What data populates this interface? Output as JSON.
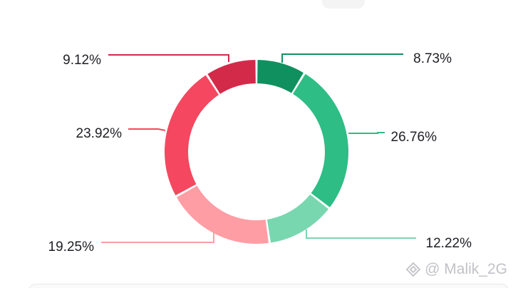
{
  "chart_data": {
    "type": "pie",
    "style": "donut",
    "slices": [
      {
        "label": "8.73%",
        "value": 8.73,
        "color": "#11905f"
      },
      {
        "label": "26.76%",
        "value": 26.76,
        "color": "#2dbd85"
      },
      {
        "label": "12.22%",
        "value": 12.22,
        "color": "#79d7b0"
      },
      {
        "label": "19.25%",
        "value": 19.25,
        "color": "#ff9da5"
      },
      {
        "label": "23.92%",
        "value": 23.92,
        "color": "#f5475f"
      },
      {
        "label": "9.12%",
        "value": 9.12,
        "color": "#d32a4a"
      }
    ]
  },
  "watermark": {
    "text": "@ Malik_2G",
    "icon": "binance-diamond-icon"
  }
}
